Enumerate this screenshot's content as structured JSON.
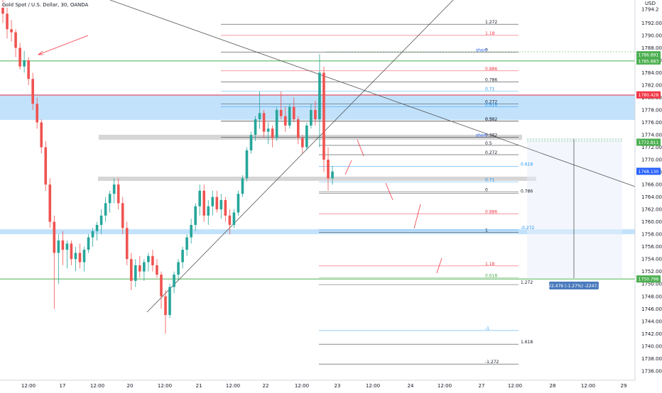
{
  "title": "Gold Spot / U.S. Dollar, 30, OANDA",
  "currency": "USD",
  "chart_data": {
    "type": "candlestick",
    "symbol": "XAUUSD",
    "timeframe": "30",
    "ylim": [
      1734.5,
      1795.7
    ],
    "y_ticks": [
      "1736.000",
      "1738.000",
      "1740.000",
      "1742.000",
      "1744.000",
      "1746.000",
      "1748.000",
      "1750.000",
      "1752.000",
      "1754.000",
      "1756.000",
      "1758.000",
      "1760.000",
      "1762.000",
      "1764.000",
      "1766.000",
      "1768.000",
      "1770.000",
      "1772.000",
      "1774.000",
      "1776.000",
      "1778.000",
      "1780.000",
      "1782.000",
      "1784.000",
      "1786.000",
      "1788.000",
      "1790.000",
      "1792.000"
    ],
    "x_ticks": [
      "12:00",
      "17",
      "12:00",
      "20",
      "12:00",
      "21",
      "12:00",
      "22",
      "12:00",
      "23",
      "12:00",
      "24",
      "12:00",
      "27",
      "12:00",
      "28",
      "12:00",
      "29"
    ],
    "price_tags": [
      {
        "text": "1786.891",
        "price": 1786.89,
        "color": "#4caf50"
      },
      {
        "text": "1785.883",
        "price": 1785.88,
        "color": "#4caf50"
      },
      {
        "text": "1780.428",
        "price": 1780.43,
        "color": "#f23645"
      },
      {
        "text": "1772.811",
        "price": 1772.81,
        "color": "#4caf50"
      },
      {
        "text": "1768.130",
        "price": 1768.13,
        "color": "#2962ff"
      },
      {
        "text": "1750.798",
        "price": 1750.8,
        "color": "#4caf50"
      },
      {
        "text": "1794.2",
        "price": 1794.2,
        "color": "#131722"
      }
    ],
    "fib_labels": [
      {
        "text": "1.272",
        "price": 1791.8,
        "color": "#131722"
      },
      {
        "text": "1.18",
        "price": 1790.0,
        "color": "#f23645"
      },
      {
        "text": "0",
        "price": 1787.3,
        "color": "#131722"
      },
      {
        "text": "0.886",
        "price": 1784.3,
        "color": "#f23645"
      },
      {
        "text": "0.786",
        "price": 1782.5,
        "color": "#131722"
      },
      {
        "text": "0.71",
        "price": 1781.0,
        "color": "#2196f3"
      },
      {
        "text": "0.272",
        "price": 1779.0,
        "color": "#131722"
      },
      {
        "text": "0.618",
        "price": 1778.5,
        "color": "#2196f3"
      },
      {
        "text": "0.5",
        "price": 1776.2,
        "color": "#131722"
      },
      {
        "text": "0.382",
        "price": 1776.2,
        "color": "#131722"
      },
      {
        "text": "0.382",
        "price": 1773.6,
        "color": "#131722"
      },
      {
        "text": "0.5",
        "price": 1772.3,
        "color": "#131722"
      },
      {
        "text": "0.272",
        "price": 1770.8,
        "color": "#131722"
      },
      {
        "text": "0.618",
        "price": 1768.9,
        "color": "#2196f3"
      },
      {
        "text": "0.71",
        "price": 1766.4,
        "color": "#2196f3"
      },
      {
        "text": "0",
        "price": 1764.8,
        "color": "#131722"
      },
      {
        "text": "0.786",
        "price": 1764.6,
        "color": "#131722"
      },
      {
        "text": "0.886",
        "price": 1761.3,
        "color": "#f23645"
      },
      {
        "text": "-0.272",
        "price": 1758.7,
        "color": "#2196f3"
      },
      {
        "text": "1",
        "price": 1758.3,
        "color": "#131722"
      },
      {
        "text": "1.18",
        "price": 1752.9,
        "color": "#f23645"
      },
      {
        "text": "0.618",
        "price": 1751.0,
        "color": "#4caf50"
      },
      {
        "text": "1.272",
        "price": 1749.9,
        "color": "#131722"
      },
      {
        "text": "-1",
        "price": 1742.5,
        "color": "#2196f3"
      },
      {
        "text": "1.618",
        "price": 1740.3,
        "color": "#131722"
      },
      {
        "text": "-1.272",
        "price": 1737.1,
        "color": "#131722"
      }
    ],
    "annotations": [
      {
        "text": "short",
        "price": 1787.3,
        "color": "#2962ff"
      },
      {
        "text": "short",
        "price": 1773.6,
        "color": "#2962ff"
      }
    ],
    "measure_label": "-22.476 (-1.27%) -2247.6",
    "zones": [
      {
        "name": "blue-zone-top",
        "from": 1776.4,
        "to": 1780.5
      },
      {
        "name": "blue-zone-bottom",
        "from": 1758.0,
        "to": 1758.8
      }
    ],
    "horizontal_lines": [
      {
        "price": 1785.9,
        "color": "#4caf50"
      },
      {
        "price": 1750.8,
        "color": "#4caf50"
      },
      {
        "price": 1780.4,
        "color": "#f23645"
      }
    ],
    "candles": [
      [
        1795.0,
        1796.0,
        1792.0,
        1793.5
      ],
      [
        1793.5,
        1794.5,
        1789.5,
        1791.0
      ],
      [
        1791.0,
        1792.5,
        1789.0,
        1790.5
      ],
      [
        1790.5,
        1791.0,
        1786.5,
        1788.0
      ],
      [
        1788.0,
        1788.8,
        1784.5,
        1785.0
      ],
      [
        1785.0,
        1787.5,
        1784.0,
        1786.0
      ],
      [
        1786.0,
        1786.5,
        1782.0,
        1783.0
      ],
      [
        1783.0,
        1784.0,
        1778.0,
        1779.0
      ],
      [
        1779.0,
        1780.0,
        1775.0,
        1776.0
      ],
      [
        1776.0,
        1776.5,
        1771.0,
        1772.0
      ],
      [
        1772.0,
        1773.0,
        1765.0,
        1766.0
      ],
      [
        1766.0,
        1767.0,
        1759.0,
        1760.0
      ],
      [
        1760.0,
        1761.0,
        1746.0,
        1755.0
      ],
      [
        1755.0,
        1758.0,
        1750.0,
        1757.0
      ],
      [
        1757.0,
        1758.5,
        1753.0,
        1755.5
      ],
      [
        1755.5,
        1757.0,
        1752.5,
        1756.5
      ],
      [
        1756.5,
        1757.0,
        1753.0,
        1754.0
      ],
      [
        1754.0,
        1756.0,
        1752.0,
        1755.0
      ],
      [
        1755.0,
        1756.5,
        1752.5,
        1753.5
      ],
      [
        1753.5,
        1756.0,
        1752.0,
        1755.5
      ],
      [
        1755.5,
        1758.0,
        1755.0,
        1757.5
      ],
      [
        1757.5,
        1759.0,
        1756.0,
        1758.5
      ],
      [
        1758.5,
        1760.0,
        1757.0,
        1759.5
      ],
      [
        1759.5,
        1762.0,
        1758.0,
        1761.0
      ],
      [
        1761.0,
        1764.0,
        1760.0,
        1763.0
      ],
      [
        1763.0,
        1765.0,
        1761.5,
        1764.5
      ],
      [
        1764.5,
        1767.0,
        1763.0,
        1766.0
      ],
      [
        1766.0,
        1767.0,
        1762.0,
        1763.0
      ],
      [
        1763.0,
        1764.0,
        1758.0,
        1759.0
      ],
      [
        1759.0,
        1760.0,
        1753.0,
        1754.0
      ],
      [
        1754.0,
        1755.0,
        1749.0,
        1750.5
      ],
      [
        1750.5,
        1754.0,
        1749.5,
        1753.0
      ],
      [
        1753.0,
        1754.5,
        1751.0,
        1752.0
      ],
      [
        1752.0,
        1754.0,
        1750.5,
        1753.5
      ],
      [
        1753.5,
        1755.0,
        1752.0,
        1754.5
      ],
      [
        1754.5,
        1755.5,
        1752.0,
        1753.0
      ],
      [
        1753.0,
        1754.0,
        1751.0,
        1751.5
      ],
      [
        1751.5,
        1752.0,
        1746.0,
        1748.0
      ],
      [
        1748.0,
        1749.0,
        1742.0,
        1745.0
      ],
      [
        1745.0,
        1750.0,
        1744.5,
        1749.5
      ],
      [
        1749.5,
        1752.0,
        1748.5,
        1751.5
      ],
      [
        1751.5,
        1754.0,
        1750.5,
        1753.5
      ],
      [
        1753.5,
        1756.0,
        1752.5,
        1755.5
      ],
      [
        1755.5,
        1758.0,
        1754.5,
        1757.5
      ],
      [
        1757.5,
        1760.5,
        1756.5,
        1759.5
      ],
      [
        1759.5,
        1763.0,
        1758.5,
        1762.5
      ],
      [
        1762.5,
        1766.0,
        1761.0,
        1765.0
      ],
      [
        1765.0,
        1766.0,
        1760.0,
        1761.0
      ],
      [
        1761.0,
        1763.5,
        1759.5,
        1762.5
      ],
      [
        1762.5,
        1765.0,
        1761.0,
        1764.0
      ],
      [
        1764.0,
        1765.0,
        1761.5,
        1762.0
      ],
      [
        1762.0,
        1764.5,
        1760.5,
        1763.5
      ],
      [
        1763.5,
        1764.0,
        1760.0,
        1761.0
      ],
      [
        1761.0,
        1762.0,
        1758.0,
        1759.5
      ],
      [
        1759.5,
        1762.0,
        1759.0,
        1761.5
      ],
      [
        1761.5,
        1765.0,
        1761.0,
        1764.5
      ],
      [
        1764.5,
        1767.5,
        1764.0,
        1767.0
      ],
      [
        1767.0,
        1772.0,
        1766.5,
        1771.5
      ],
      [
        1771.5,
        1774.5,
        1771.0,
        1774.0
      ],
      [
        1774.0,
        1777.0,
        1773.0,
        1776.5
      ],
      [
        1776.5,
        1781.0,
        1775.0,
        1777.5
      ],
      [
        1777.5,
        1778.0,
        1773.5,
        1774.5
      ],
      [
        1774.5,
        1776.0,
        1772.5,
        1775.0
      ],
      [
        1775.0,
        1775.5,
        1772.0,
        1773.5
      ],
      [
        1773.5,
        1778.5,
        1773.0,
        1778.0
      ],
      [
        1778.0,
        1781.0,
        1776.5,
        1777.0
      ],
      [
        1777.0,
        1778.5,
        1774.5,
        1775.5
      ],
      [
        1775.5,
        1779.0,
        1775.0,
        1778.5
      ],
      [
        1778.5,
        1780.0,
        1776.0,
        1776.5
      ],
      [
        1776.5,
        1777.0,
        1772.5,
        1773.5
      ],
      [
        1773.5,
        1774.0,
        1771.0,
        1772.0
      ],
      [
        1772.0,
        1776.0,
        1771.5,
        1775.5
      ],
      [
        1775.5,
        1779.0,
        1775.0,
        1778.0
      ],
      [
        1778.0,
        1779.5,
        1775.5,
        1776.5
      ],
      [
        1776.5,
        1787.0,
        1772.0,
        1784.0
      ],
      [
        1784.0,
        1785.0,
        1768.0,
        1770.0
      ],
      [
        1770.0,
        1772.0,
        1765.0,
        1767.0
      ],
      [
        1767.0,
        1769.0,
        1766.0,
        1768.1
      ]
    ]
  }
}
